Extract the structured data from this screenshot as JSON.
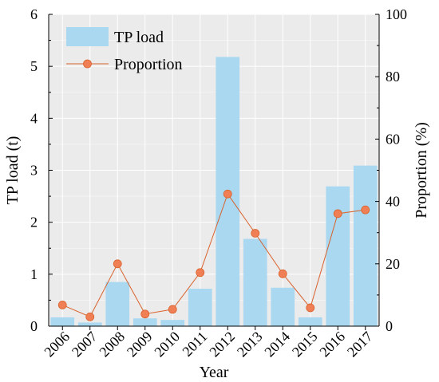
{
  "chart_data": {
    "type": "bar",
    "categories": [
      "2006",
      "2007",
      "2008",
      "2009",
      "2010",
      "2011",
      "2012",
      "2013",
      "2014",
      "2015",
      "2016",
      "2017"
    ],
    "xlabel": "Year",
    "series": [
      {
        "name": "TP load",
        "type": "bar",
        "axis": "left",
        "color": "#a9d8f0",
        "values": [
          0.17,
          0.07,
          0.85,
          0.15,
          0.12,
          0.72,
          5.18,
          1.68,
          0.74,
          0.17,
          2.69,
          3.09
        ]
      },
      {
        "name": "Proportion",
        "type": "line",
        "axis": "right",
        "color": "#d9622c",
        "marker_color": "#f07f55",
        "values": [
          6.8,
          3.0,
          20.0,
          3.9,
          5.4,
          17.2,
          42.4,
          29.8,
          16.8,
          5.9,
          36.1,
          37.3
        ]
      }
    ],
    "y_left": {
      "label": "TP load (t)",
      "ylim": [
        0,
        6
      ],
      "ticks": [
        "0",
        "1",
        "2",
        "3",
        "4",
        "5",
        "6"
      ]
    },
    "y_right": {
      "label": "Proportion (%)",
      "ylim": [
        0,
        100
      ],
      "ticks": [
        "0",
        "20",
        "40",
        "60",
        "80",
        "100"
      ]
    },
    "plot_background": "#ebebeb",
    "grid": true,
    "grid_color": "#ffffff",
    "legend_position": "top-left"
  }
}
